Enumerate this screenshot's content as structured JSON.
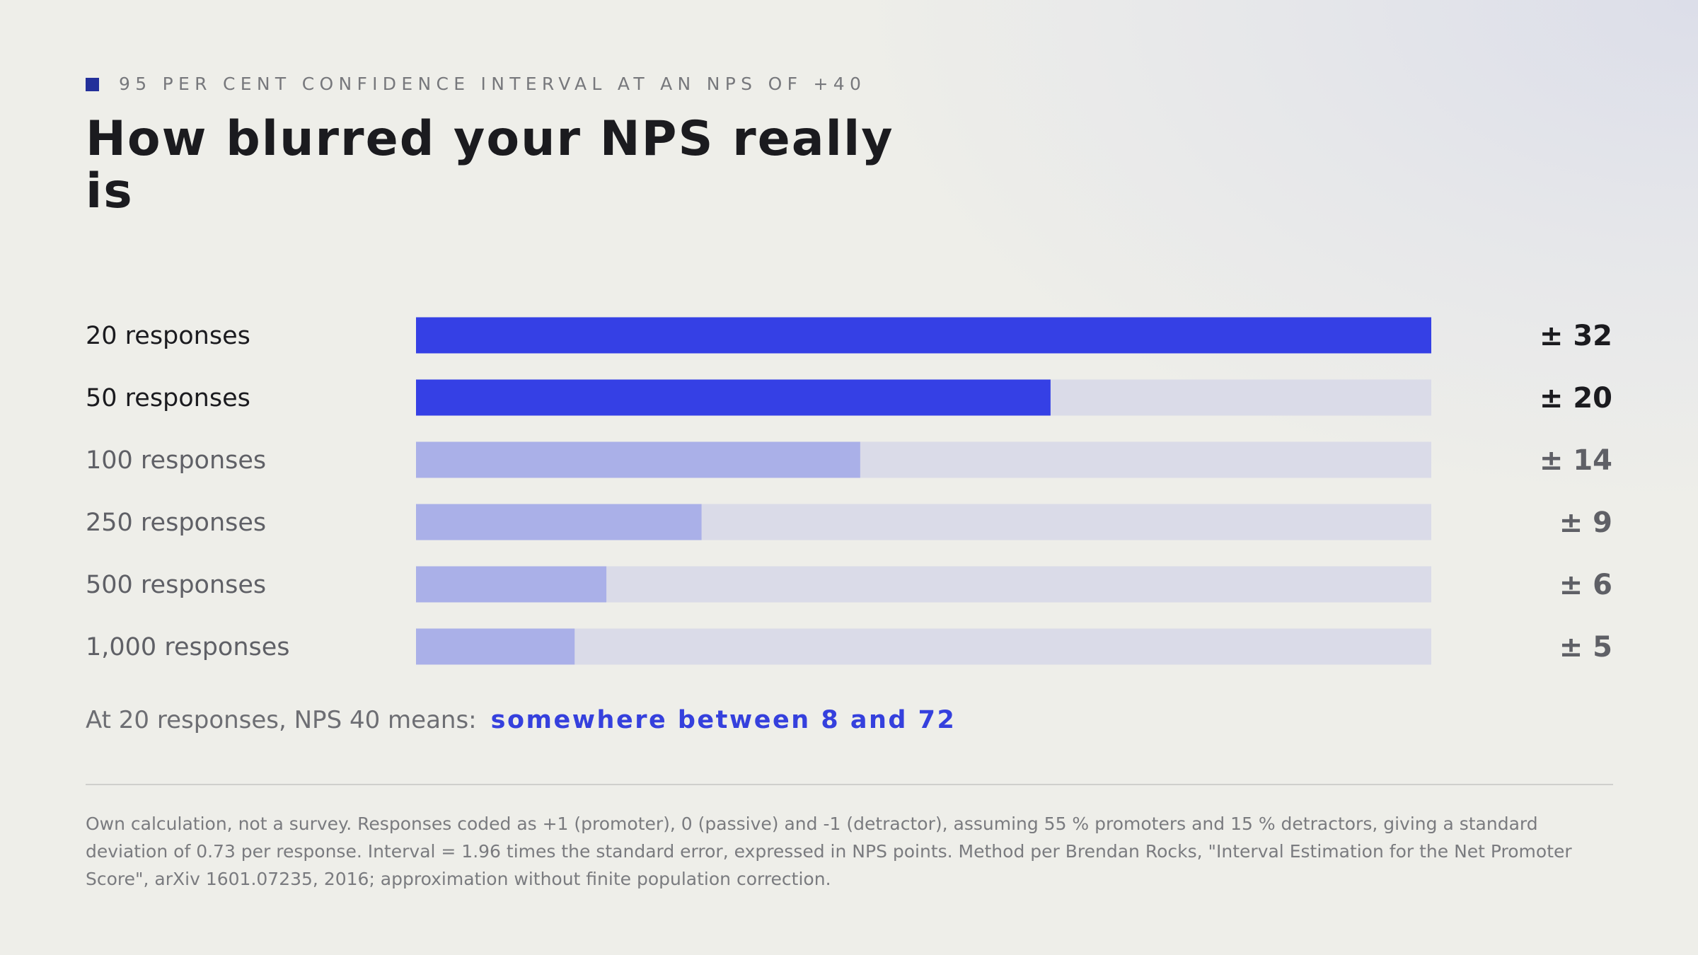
{
  "eyebrow": "95 PER CENT CONFIDENCE INTERVAL AT AN NPS OF +40",
  "title": "How blurred your NPS really is",
  "chart_data": {
    "type": "bar",
    "orientation": "horizontal",
    "title": "How blurred your NPS really is",
    "categories": [
      "20 responses",
      "50 responses",
      "100 responses",
      "250 responses",
      "500 responses",
      "1,000 responses"
    ],
    "values": [
      32,
      20,
      14,
      9,
      6,
      5
    ],
    "value_labels": [
      "± 32",
      "± 20",
      "± 14",
      "± 9",
      "± 6",
      "± 5"
    ],
    "xlim": [
      0,
      32
    ],
    "grid": false,
    "legend": "none",
    "highlighted_count": 2
  },
  "colors": {
    "bar_strong": "#3540e5",
    "bar_light": "#aab0e8",
    "track": "#dadbe8",
    "label_strong": "#1b1b1f",
    "label_muted": "#5f6066",
    "accent": "#3540dd"
  },
  "note": {
    "lead": "At 20 responses, NPS 40 means:",
    "emphasis": "somewhere between 8 and 72"
  },
  "footnote": "Own calculation, not a survey. Responses coded as +1 (promoter), 0 (passive) and -1 (detractor), assuming 55 % promoters and 15 % detractors, giving a standard deviation of 0.73 per response. Interval = 1.96 times the standard error, expressed in NPS points. Method per Brendan Rocks, \"Interval Estimation for the Net Promoter Score\", arXiv 1601.07235, 2016; approximation without finite population correction."
}
